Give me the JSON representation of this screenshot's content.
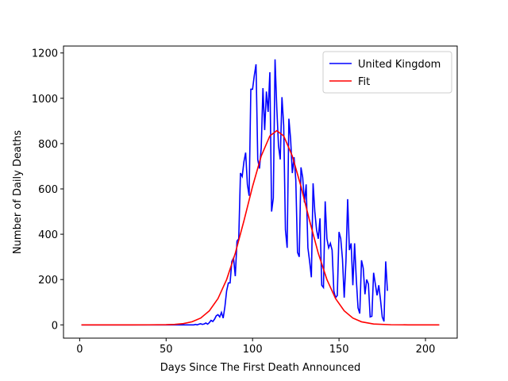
{
  "chart_data": {
    "type": "line",
    "xlabel": "Days Since The First Death Announced",
    "ylabel": "Number of Daily Deaths",
    "xlim": [
      -9.35,
      218.35
    ],
    "xticks": [
      0,
      50,
      100,
      150,
      200
    ],
    "ylim": [
      -58.6,
      1230.6
    ],
    "yticks": [
      0,
      200,
      400,
      600,
      800,
      1000,
      1200
    ],
    "legend": "upper right",
    "series": [
      {
        "name": "United Kingdom",
        "color": "#0000ff",
        "x": [
          1,
          10,
          20,
          30,
          40,
          50,
          60,
          66,
          67,
          68,
          69,
          70,
          71,
          72,
          73,
          74,
          75,
          76,
          77,
          78,
          79,
          80,
          81,
          82,
          83,
          84,
          85,
          86,
          87,
          88,
          89,
          90,
          91,
          92,
          93,
          94,
          95,
          96,
          97,
          98,
          99,
          100,
          101,
          102,
          103,
          104,
          105,
          106,
          107,
          108,
          109,
          110,
          111,
          112,
          113,
          114,
          115,
          116,
          117,
          118,
          119,
          120,
          121,
          122,
          123,
          124,
          125,
          126,
          127,
          128,
          129,
          130,
          131,
          132,
          133,
          134,
          135,
          136,
          137,
          138,
          139,
          140,
          141,
          142,
          143,
          144,
          145,
          146,
          147,
          148,
          149,
          150,
          151,
          152,
          153,
          154,
          155,
          156,
          157,
          158,
          159,
          160,
          161,
          162,
          163,
          164,
          165,
          166,
          167,
          168,
          169,
          170,
          171,
          172,
          173,
          174,
          175,
          176,
          177,
          178
        ],
        "values": [
          0,
          0,
          0,
          0,
          0,
          0,
          0,
          0,
          2,
          0,
          3,
          5,
          2,
          4,
          8,
          3,
          10,
          20,
          15,
          25,
          40,
          45,
          35,
          55,
          30,
          80,
          150,
          185,
          185,
          280,
          295,
          215,
          370,
          380,
          670,
          655,
          720,
          760,
          620,
          570,
          1040,
          1040,
          1100,
          1150,
          730,
          690,
          780,
          1045,
          860,
          1030,
          940,
          1115,
          500,
          560,
          1172,
          960,
          790,
          730,
          1005,
          880,
          420,
          340,
          910,
          820,
          670,
          740,
          640,
          320,
          300,
          695,
          650,
          540,
          620,
          340,
          280,
          210,
          625,
          500,
          420,
          380,
          470,
          175,
          165,
          545,
          380,
          340,
          360,
          330,
          150,
          120,
          130,
          410,
          380,
          290,
          120,
          280,
          555,
          330,
          360,
          175,
          360,
          200,
          75,
          50,
          285,
          250,
          135,
          200,
          180,
          35,
          38,
          230,
          180,
          130,
          175,
          110,
          35,
          15,
          280,
          150
        ]
      },
      {
        "name": "Fit",
        "color": "#ff0000",
        "x": [
          1,
          10,
          20,
          30,
          40,
          50,
          55,
          60,
          65,
          70,
          75,
          80,
          85,
          90,
          95,
          100,
          105,
          110,
          114,
          118,
          123,
          128,
          133,
          138,
          143,
          148,
          153,
          158,
          163,
          170,
          180,
          190,
          208
        ],
        "values": [
          0,
          0,
          0,
          0,
          0.1,
          0.7,
          2.1,
          5.5,
          13.5,
          30,
          62,
          116,
          200,
          316,
          459,
          611,
          745,
          834,
          857,
          834,
          745,
          611,
          459,
          316,
          200,
          116,
          62,
          30,
          13.5,
          3.8,
          0.5,
          0,
          0
        ]
      }
    ]
  }
}
